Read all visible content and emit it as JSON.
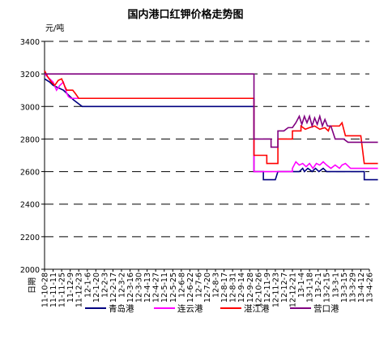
{
  "chart_data": {
    "type": "line",
    "title": "国内港口红钾价格走势图",
    "unit_label": "元/吨",
    "xlabel": "日期",
    "ylim": [
      2000,
      3400
    ],
    "yticks": [
      2000,
      2200,
      2400,
      2600,
      2800,
      3000,
      3200,
      3400
    ],
    "grid": true,
    "x_tick_labels": [
      "11-10-28",
      "11-11-11",
      "11-11-25",
      "11-12-9",
      "11-12-23",
      "12-1-6",
      "12-1-20",
      "12-2-3",
      "12-2-17",
      "12-3-2",
      "12-3-16",
      "12-3-30",
      "12-4-13",
      "12-4-27",
      "12-5-11",
      "12-5-25",
      "12-6-8",
      "12-6-22",
      "12-7-6",
      "12-7-20",
      "12-8-3",
      "12-8-17",
      "12-8-31",
      "12-9-14",
      "12-9-28",
      "12-10-26",
      "12-11-9",
      "12-11-23",
      "12-12-7",
      "12-12-21",
      "13-1-4",
      "13-1-18",
      "13-2-1",
      "13-2-15",
      "13-3-1",
      "13-3-15",
      "13-3-29",
      "13-4-12",
      "13-4-26"
    ],
    "legend_position": "bottom",
    "series": [
      {
        "name": "青岛港",
        "color": "#000080",
        "x": [
          0,
          0.6,
          1.0,
          1.4,
          2.2,
          2.6,
          3.0,
          3.4,
          4.4,
          24.5,
          24.5,
          25.6,
          25.6,
          27.0,
          27.3,
          29.8,
          30.2,
          30.4,
          30.8,
          31.3,
          31.7,
          32.1,
          32.6,
          33.0,
          33.4,
          35.5,
          37.4,
          37.4,
          39.0
        ],
        "values": [
          3170,
          3150,
          3130,
          3120,
          3100,
          3080,
          3060,
          3040,
          3000,
          3000,
          2600,
          2600,
          2550,
          2550,
          2600,
          2600,
          2620,
          2600,
          2620,
          2600,
          2620,
          2600,
          2620,
          2600,
          2600,
          2600,
          2600,
          2550,
          2550
        ]
      },
      {
        "name": "连云港",
        "color": "#ff00ff",
        "x": [
          0,
          0.6,
          1.0,
          1.4,
          1.8,
          2.2,
          2.6,
          2.8,
          3.1,
          3.6,
          4.0,
          24.5,
          24.5,
          29.0,
          29.0,
          29.4,
          29.8,
          30.2,
          30.6,
          31.0,
          31.4,
          31.8,
          32.2,
          32.6,
          33.0,
          33.5,
          34.0,
          34.5,
          34.8,
          35.2,
          35.8,
          39.0
        ],
        "values": [
          3200,
          3170,
          3150,
          3100,
          3130,
          3150,
          3080,
          3060,
          3050,
          3050,
          3050,
          3050,
          2600,
          2600,
          2620,
          2660,
          2640,
          2650,
          2630,
          2650,
          2620,
          2650,
          2640,
          2660,
          2640,
          2620,
          2640,
          2620,
          2640,
          2650,
          2620,
          2620
        ]
      },
      {
        "name": "湛江港",
        "color": "#ff0000",
        "x": [
          0,
          0.4,
          0.8,
          1.2,
          1.6,
          2.0,
          2.4,
          2.6,
          3.3,
          3.6,
          4.0,
          24.5,
          24.5,
          26.0,
          26.0,
          27.3,
          27.3,
          29.0,
          29.0,
          30.0,
          30.0,
          30.5,
          31.0,
          31.6,
          32.2,
          32.8,
          33.2,
          33.4,
          34.5,
          34.8,
          35.2,
          37.0,
          37.4,
          39.0
        ],
        "values": [
          3220,
          3180,
          3150,
          3130,
          3160,
          3170,
          3120,
          3100,
          3100,
          3080,
          3050,
          3050,
          2700,
          2700,
          2650,
          2650,
          2800,
          2800,
          2850,
          2850,
          2880,
          2860,
          2870,
          2880,
          2860,
          2870,
          2850,
          2880,
          2880,
          2900,
          2820,
          2820,
          2650,
          2650
        ]
      },
      {
        "name": "营口港",
        "color": "#800080",
        "x": [
          0,
          24.5,
          24.5,
          26.5,
          26.5,
          27.3,
          27.3,
          28.0,
          28.5,
          29.0,
          29.4,
          29.8,
          30.1,
          30.4,
          30.7,
          31.0,
          31.3,
          31.6,
          31.9,
          32.2,
          32.5,
          32.8,
          33.1,
          33.5,
          34.0,
          35.0,
          35.5,
          37.4,
          37.4,
          39.0
        ],
        "values": [
          3200,
          3200,
          2800,
          2800,
          2750,
          2750,
          2850,
          2850,
          2870,
          2870,
          2900,
          2940,
          2890,
          2940,
          2900,
          2940,
          2880,
          2930,
          2890,
          2940,
          2880,
          2920,
          2880,
          2880,
          2800,
          2800,
          2780,
          2780,
          2780,
          2780
        ]
      }
    ]
  }
}
